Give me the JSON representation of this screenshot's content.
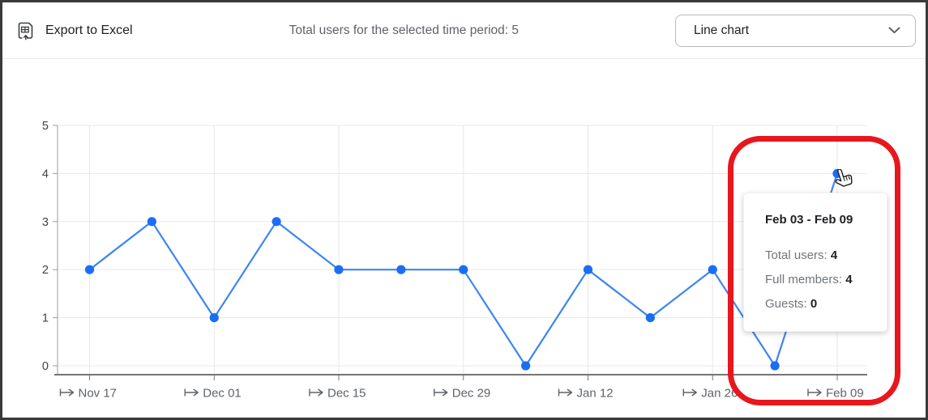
{
  "toolbar": {
    "export_label": "Export to Excel",
    "export_icon": "spreadsheet-export-icon",
    "summary_text": "Total users for the selected time period: 5",
    "chart_type_selector": {
      "value": "Line chart",
      "icon": "chevron-down-icon"
    }
  },
  "chart_data": {
    "type": "line",
    "title": "",
    "xlabel": "",
    "ylabel": "",
    "ylim": [
      0,
      5
    ],
    "y_ticks": [
      0,
      1,
      2,
      3,
      4,
      5
    ],
    "x_tick_labels": [
      "Nov 17",
      "Dec 01",
      "Dec 15",
      "Dec 29",
      "Jan 12",
      "Jan 26",
      "Feb 09"
    ],
    "x_tick_prefix_icon": "maps-to-arrow-icon",
    "x_ticks_every_n_points": 2,
    "grid": true,
    "legend_position": "none",
    "series": [
      {
        "name": "Total users",
        "values": [
          2,
          3,
          1,
          3,
          2,
          2,
          2,
          0,
          2,
          1,
          2,
          0,
          4
        ]
      }
    ],
    "line_color": "#3d85f2",
    "point_color": "#1b6ef3",
    "highlighted_point": {
      "index": 12,
      "value": 4
    }
  },
  "tooltip": {
    "title": "Feb 03 - Feb 09",
    "rows": [
      {
        "label": "Total users:",
        "value": "4"
      },
      {
        "label": "Full members:",
        "value": "4"
      },
      {
        "label": "Guests:",
        "value": "0"
      }
    ]
  },
  "annotation": {
    "shape": "red-rounded-rect-highlight",
    "color": "#e8161d"
  },
  "cursor": {
    "icon": "hand-pointer-cursor"
  }
}
